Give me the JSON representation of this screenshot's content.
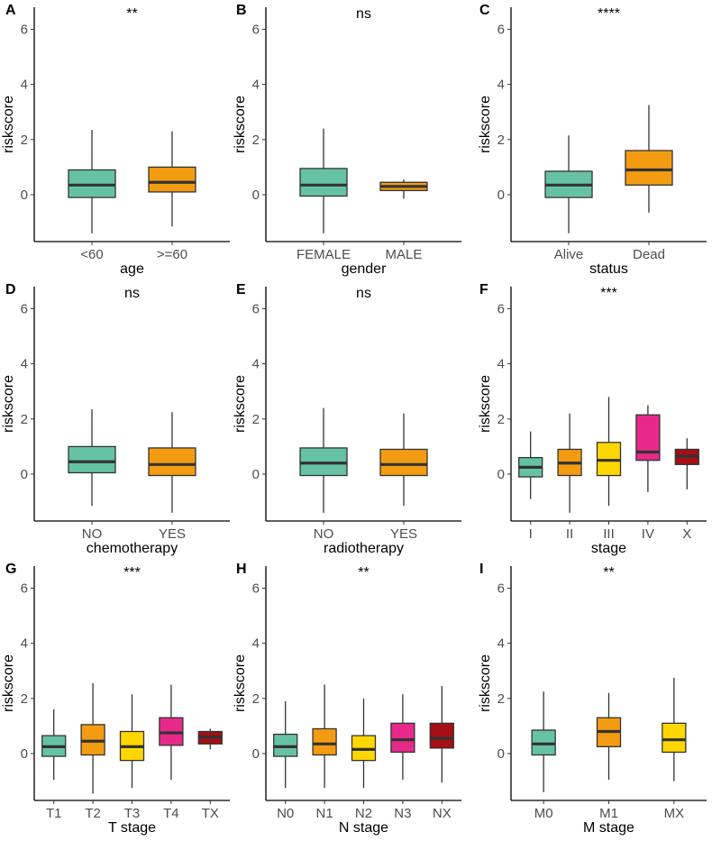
{
  "figure": {
    "ylabel": "riskscore"
  },
  "chart_data": [
    {
      "panel": "A",
      "type": "boxplot",
      "xlabel": "age",
      "ylabel": "riskscore",
      "significance": "**",
      "ylim": [
        -1.7,
        6.8
      ],
      "yticks": [
        0,
        2,
        4,
        6
      ],
      "boxes": [
        {
          "category": "<60",
          "min": -1.4,
          "q1": -0.1,
          "median": 0.35,
          "q3": 0.9,
          "max": 2.35,
          "color": "#66C2A5"
        },
        {
          "category": ">=60",
          "min": -1.15,
          "q1": 0.1,
          "median": 0.45,
          "q3": 1.0,
          "max": 2.3,
          "color": "#F39C12"
        }
      ]
    },
    {
      "panel": "B",
      "type": "boxplot",
      "xlabel": "gender",
      "ylabel": "riskscore",
      "significance": "ns",
      "ylim": [
        -1.7,
        6.8
      ],
      "yticks": [
        0,
        2,
        4,
        6
      ],
      "boxes": [
        {
          "category": "FEMALE",
          "min": -1.4,
          "q1": -0.05,
          "median": 0.35,
          "q3": 0.95,
          "max": 2.4,
          "color": "#66C2A5"
        },
        {
          "category": "MALE",
          "min": -0.15,
          "q1": 0.15,
          "median": 0.3,
          "q3": 0.45,
          "max": 0.55,
          "color": "#F39C12"
        }
      ]
    },
    {
      "panel": "C",
      "type": "boxplot",
      "xlabel": "status",
      "ylabel": "riskscore",
      "significance": "****",
      "ylim": [
        -1.7,
        6.8
      ],
      "yticks": [
        0,
        2,
        4,
        6
      ],
      "boxes": [
        {
          "category": "Alive",
          "min": -1.4,
          "q1": -0.1,
          "median": 0.35,
          "q3": 0.85,
          "max": 2.15,
          "color": "#66C2A5"
        },
        {
          "category": "Dead",
          "min": -0.65,
          "q1": 0.35,
          "median": 0.9,
          "q3": 1.6,
          "max": 3.25,
          "color": "#F39C12"
        }
      ]
    },
    {
      "panel": "D",
      "type": "boxplot",
      "xlabel": "chemotherapy",
      "ylabel": "riskscore",
      "significance": "ns",
      "ylim": [
        -1.7,
        6.8
      ],
      "yticks": [
        0,
        2,
        4,
        6
      ],
      "boxes": [
        {
          "category": "NO",
          "min": -1.15,
          "q1": 0.05,
          "median": 0.45,
          "q3": 1.0,
          "max": 2.35,
          "color": "#66C2A5"
        },
        {
          "category": "YES",
          "min": -1.4,
          "q1": -0.05,
          "median": 0.35,
          "q3": 0.95,
          "max": 2.25,
          "color": "#F39C12"
        }
      ]
    },
    {
      "panel": "E",
      "type": "boxplot",
      "xlabel": "radiotherapy",
      "ylabel": "riskscore",
      "significance": "ns",
      "ylim": [
        -1.7,
        6.8
      ],
      "yticks": [
        0,
        2,
        4,
        6
      ],
      "boxes": [
        {
          "category": "NO",
          "min": -1.4,
          "q1": -0.05,
          "median": 0.4,
          "q3": 0.95,
          "max": 2.4,
          "color": "#66C2A5"
        },
        {
          "category": "YES",
          "min": -1.15,
          "q1": -0.05,
          "median": 0.35,
          "q3": 0.9,
          "max": 2.2,
          "color": "#F39C12"
        }
      ]
    },
    {
      "panel": "F",
      "type": "boxplot",
      "xlabel": "stage",
      "ylabel": "riskscore",
      "significance": "***",
      "ylim": [
        -1.7,
        6.8
      ],
      "yticks": [
        0,
        2,
        4,
        6
      ],
      "boxes": [
        {
          "category": "I",
          "min": -0.9,
          "q1": -0.1,
          "median": 0.25,
          "q3": 0.6,
          "max": 1.55,
          "color": "#66C2A5"
        },
        {
          "category": "II",
          "min": -1.4,
          "q1": -0.05,
          "median": 0.4,
          "q3": 0.9,
          "max": 2.2,
          "color": "#F39C12"
        },
        {
          "category": "III",
          "min": -1.15,
          "q1": -0.05,
          "median": 0.5,
          "q3": 1.15,
          "max": 2.8,
          "color": "#FFD700"
        },
        {
          "category": "IV",
          "min": -0.65,
          "q1": 0.5,
          "median": 0.8,
          "q3": 2.15,
          "max": 2.5,
          "color": "#E7298A"
        },
        {
          "category": "X",
          "min": -0.55,
          "q1": 0.35,
          "median": 0.65,
          "q3": 0.9,
          "max": 1.3,
          "color": "#A50F15"
        }
      ]
    },
    {
      "panel": "G",
      "type": "boxplot",
      "xlabel": "T stage",
      "ylabel": "riskscore",
      "significance": "***",
      "ylim": [
        -1.7,
        6.8
      ],
      "yticks": [
        0,
        2,
        4,
        6
      ],
      "boxes": [
        {
          "category": "T1",
          "min": -0.95,
          "q1": -0.1,
          "median": 0.25,
          "q3": 0.65,
          "max": 1.6,
          "color": "#66C2A5"
        },
        {
          "category": "T2",
          "min": -1.45,
          "q1": -0.05,
          "median": 0.45,
          "q3": 1.05,
          "max": 2.55,
          "color": "#F39C12"
        },
        {
          "category": "T3",
          "min": -1.25,
          "q1": -0.25,
          "median": 0.25,
          "q3": 0.8,
          "max": 2.15,
          "color": "#FFD700"
        },
        {
          "category": "T4",
          "min": -0.95,
          "q1": 0.3,
          "median": 0.75,
          "q3": 1.3,
          "max": 2.5,
          "color": "#E7298A"
        },
        {
          "category": "TX",
          "min": 0.15,
          "q1": 0.35,
          "median": 0.6,
          "q3": 0.8,
          "max": 0.9,
          "color": "#A50F15"
        }
      ]
    },
    {
      "panel": "H",
      "type": "boxplot",
      "xlabel": "N stage",
      "ylabel": "riskscore",
      "significance": "**",
      "ylim": [
        -1.7,
        6.8
      ],
      "yticks": [
        0,
        2,
        4,
        6
      ],
      "boxes": [
        {
          "category": "N0",
          "min": -1.25,
          "q1": -0.1,
          "median": 0.25,
          "q3": 0.7,
          "max": 1.9,
          "color": "#66C2A5"
        },
        {
          "category": "N1",
          "min": -1.25,
          "q1": -0.05,
          "median": 0.35,
          "q3": 0.9,
          "max": 2.5,
          "color": "#F39C12"
        },
        {
          "category": "N2",
          "min": -1.25,
          "q1": -0.25,
          "median": 0.15,
          "q3": 0.65,
          "max": 2.0,
          "color": "#FFD700"
        },
        {
          "category": "N3",
          "min": -0.95,
          "q1": 0.05,
          "median": 0.5,
          "q3": 1.1,
          "max": 2.15,
          "color": "#E7298A"
        },
        {
          "category": "NX",
          "min": -1.05,
          "q1": 0.2,
          "median": 0.55,
          "q3": 1.1,
          "max": 2.45,
          "color": "#A50F15"
        }
      ]
    },
    {
      "panel": "I",
      "type": "boxplot",
      "xlabel": "M stage",
      "ylabel": "riskscore",
      "significance": "**",
      "ylim": [
        -1.7,
        6.8
      ],
      "yticks": [
        0,
        2,
        4,
        6
      ],
      "boxes": [
        {
          "category": "M0",
          "min": -1.4,
          "q1": -0.05,
          "median": 0.35,
          "q3": 0.85,
          "max": 2.25,
          "color": "#66C2A5"
        },
        {
          "category": "M1",
          "min": -0.95,
          "q1": 0.25,
          "median": 0.8,
          "q3": 1.3,
          "max": 2.2,
          "color": "#F39C12"
        },
        {
          "category": "MX",
          "min": -1.0,
          "q1": 0.05,
          "median": 0.5,
          "q3": 1.1,
          "max": 2.75,
          "color": "#FFD700"
        }
      ]
    }
  ]
}
